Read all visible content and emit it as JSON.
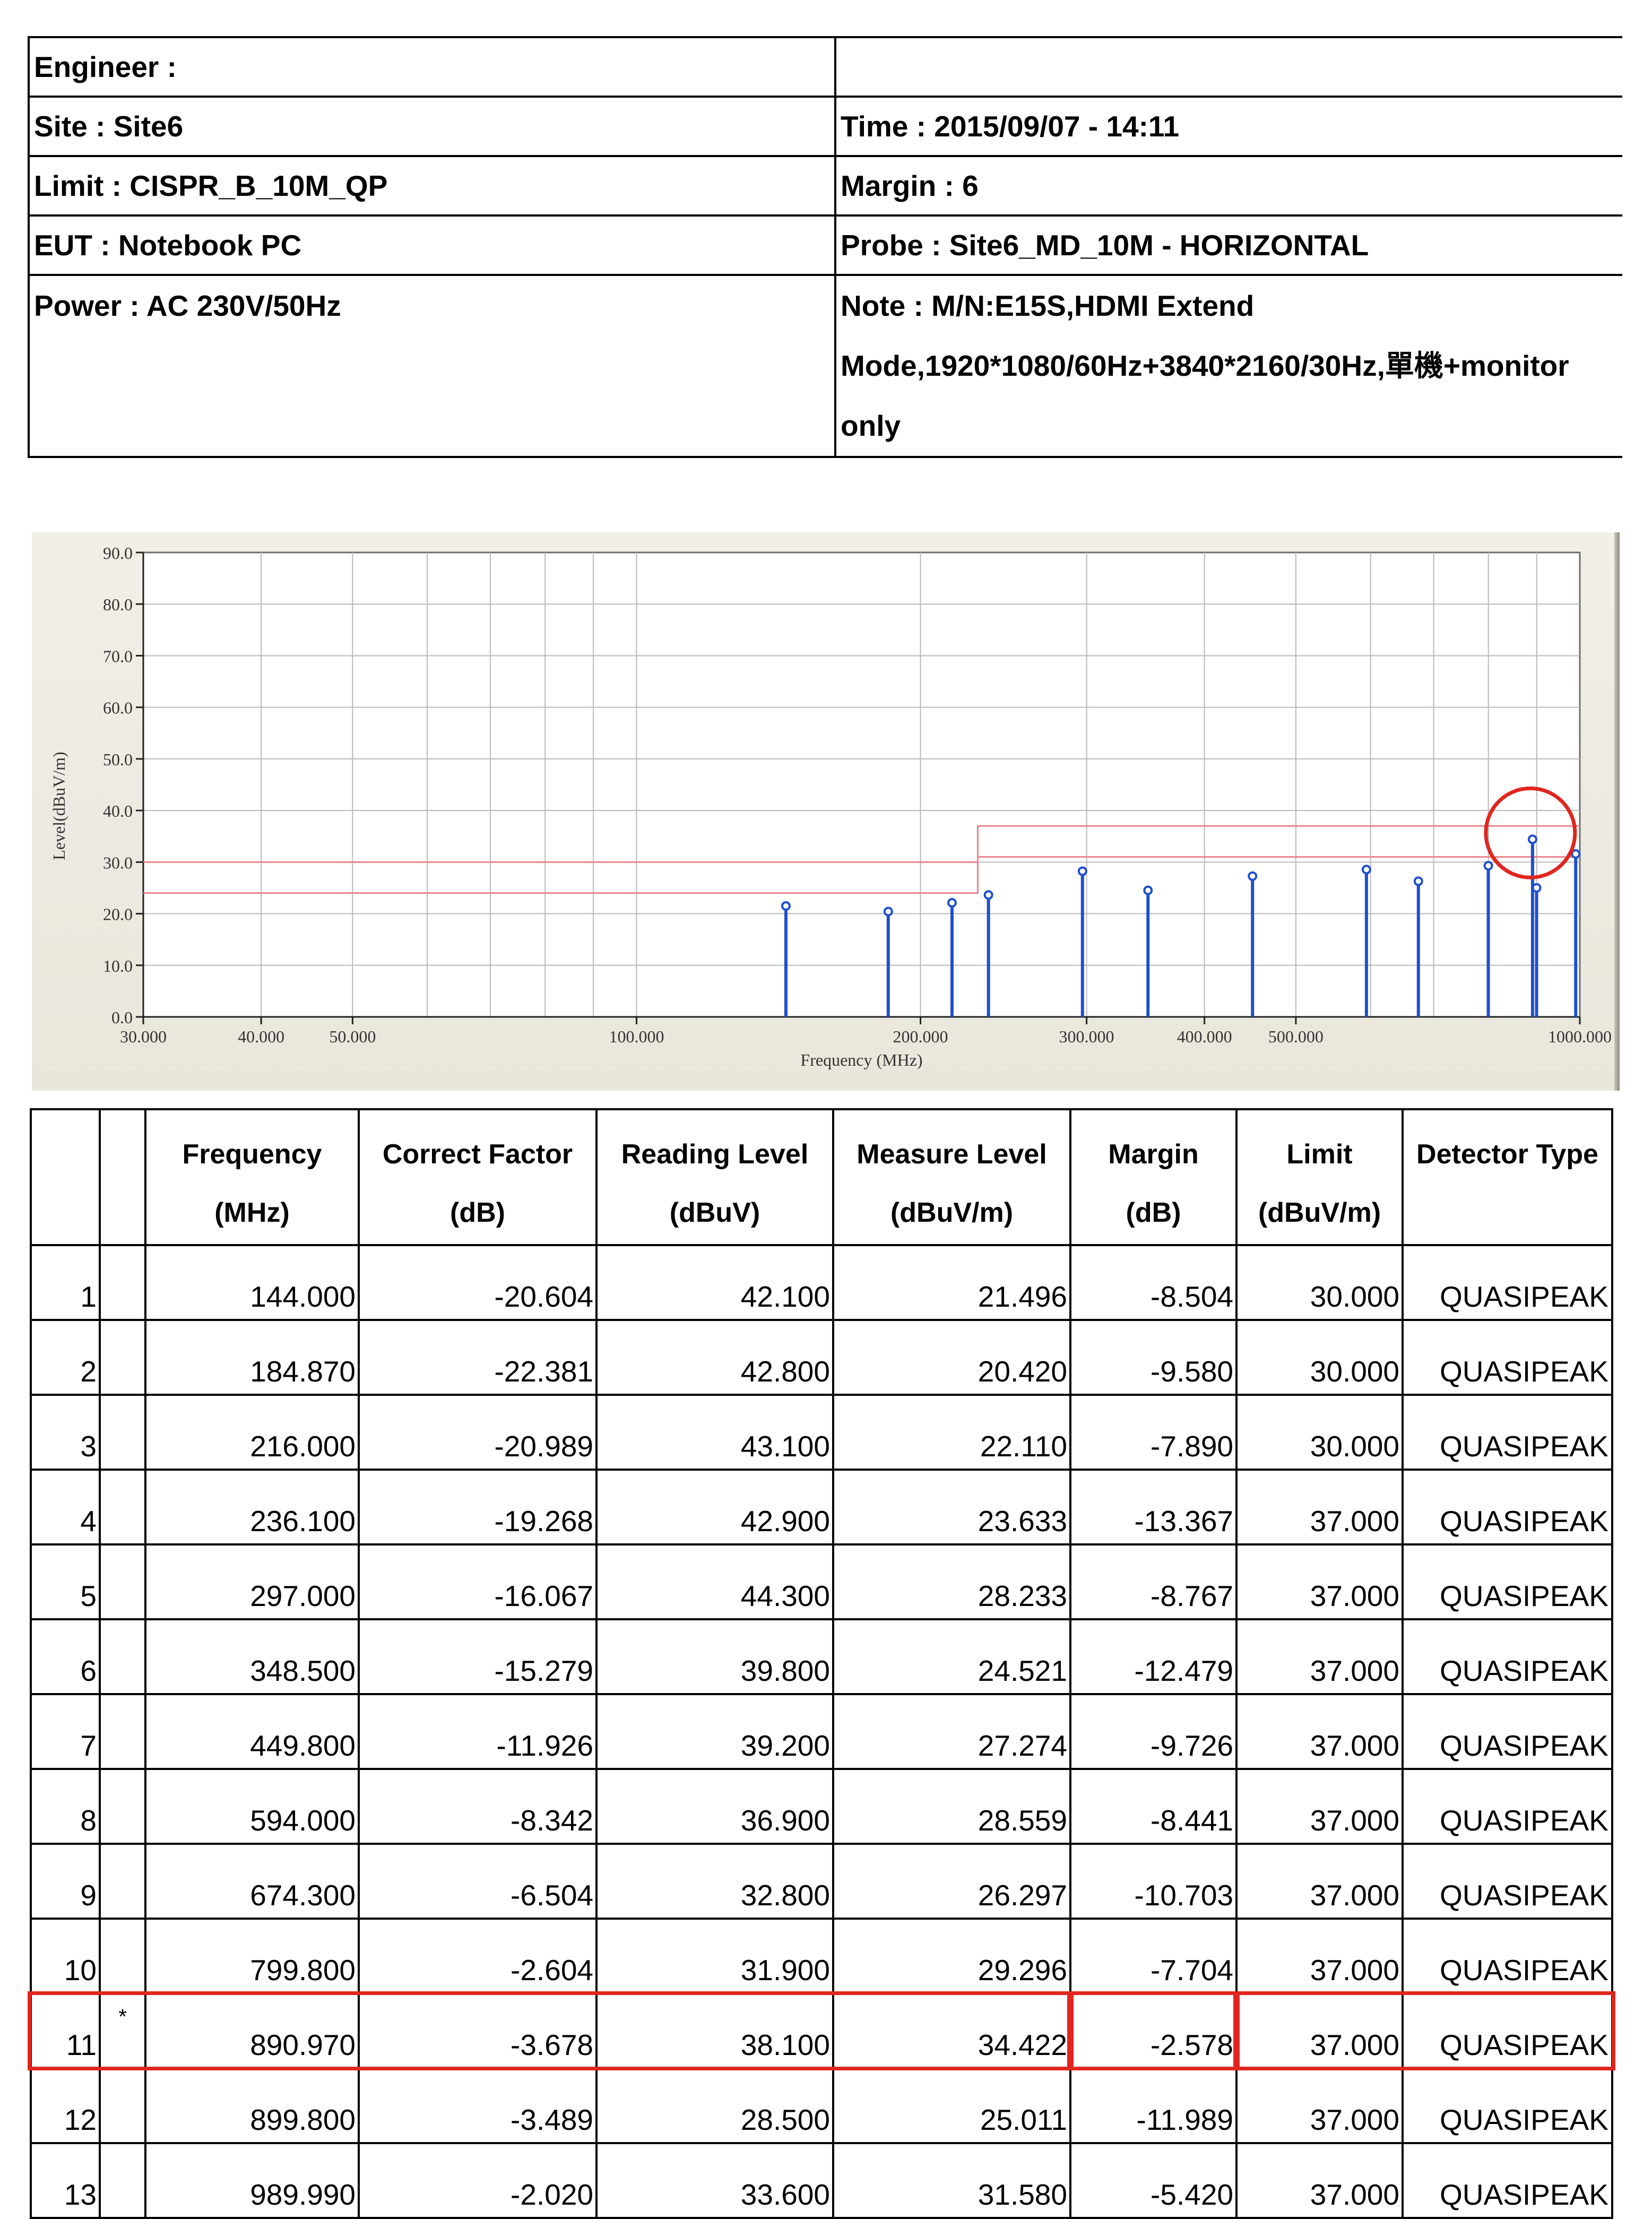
{
  "header": {
    "engineer": "Engineer :",
    "engineer_value": "",
    "site": "Site : Site6",
    "time": "Time : 2015/09/07 - 14:11",
    "limit": "Limit : CISPR_B_10M_QP",
    "margin": "Margin : 6",
    "eut": "EUT : Notebook PC",
    "probe": "Probe : Site6_MD_10M - HORIZONTAL",
    "power": "Power : AC 230V/50Hz",
    "note_line1": "Note : M/N:E15S,HDMI Extend",
    "note_line2": "Mode,1920*1080/60Hz+3840*2160/30Hz,單機+monitor",
    "note_line3": "only"
  },
  "chart_data": {
    "type": "scatter",
    "xlabel": "Frequency (MHz)",
    "ylabel": "Level(dBuV/m)",
    "x_scale": "log",
    "xlim": [
      30,
      1000
    ],
    "ylim": [
      0,
      90
    ],
    "x_ticks": [
      30,
      40,
      50,
      100,
      200,
      300,
      400,
      500,
      1000
    ],
    "x_tick_labels": [
      "30.000",
      "40.000",
      "50.000",
      "100.000",
      "200.000",
      "300.000",
      "400.000",
      "500.000",
      "1000.000"
    ],
    "y_ticks": [
      0,
      10,
      20,
      30,
      40,
      50,
      60,
      70,
      80,
      90
    ],
    "y_tick_labels": [
      "0.0",
      "10.0",
      "20.0",
      "30.0",
      "40.0",
      "50.0",
      "60.0",
      "70.0",
      "80.0",
      "90.0"
    ],
    "grid": true,
    "limit_lines": [
      {
        "x": [
          30,
          230,
          230,
          1000
        ],
        "y": [
          30,
          30,
          37,
          37
        ],
        "color": "#e8848a"
      },
      {
        "x": [
          30,
          230,
          230,
          1000
        ],
        "y": [
          24,
          24,
          31,
          31
        ],
        "color": "#e8848a"
      }
    ],
    "points": {
      "x": [
        144.0,
        184.87,
        216.0,
        236.1,
        297.0,
        348.5,
        449.8,
        594.0,
        674.3,
        799.8,
        890.97,
        899.8,
        989.99
      ],
      "y": [
        21.496,
        20.42,
        22.11,
        23.633,
        28.233,
        24.521,
        27.274,
        28.559,
        26.297,
        29.296,
        34.422,
        25.011,
        31.58
      ],
      "color": "#1e4fcf"
    },
    "highlight": {
      "x": 890.97,
      "y": 34.422,
      "color": "#e0261f"
    }
  },
  "table": {
    "headers": [
      {
        "l1": "",
        "l2": ""
      },
      {
        "l1": "",
        "l2": ""
      },
      {
        "l1": "Frequency",
        "l2": "(MHz)"
      },
      {
        "l1": "Correct Factor",
        "l2": "(dB)"
      },
      {
        "l1": "Reading Level",
        "l2": "(dBuV)"
      },
      {
        "l1": "Measure Level",
        "l2": "(dBuV/m)"
      },
      {
        "l1": "Margin",
        "l2": "(dB)"
      },
      {
        "l1": "Limit",
        "l2": "(dBuV/m)"
      },
      {
        "l1": "Detector Type",
        "l2": ""
      }
    ],
    "rows": [
      [
        "1",
        "",
        "144.000",
        "-20.604",
        "42.100",
        "21.496",
        "-8.504",
        "30.000",
        "QUASIPEAK"
      ],
      [
        "2",
        "",
        "184.870",
        "-22.381",
        "42.800",
        "20.420",
        "-9.580",
        "30.000",
        "QUASIPEAK"
      ],
      [
        "3",
        "",
        "216.000",
        "-20.989",
        "43.100",
        "22.110",
        "-7.890",
        "30.000",
        "QUASIPEAK"
      ],
      [
        "4",
        "",
        "236.100",
        "-19.268",
        "42.900",
        "23.633",
        "-13.367",
        "37.000",
        "QUASIPEAK"
      ],
      [
        "5",
        "",
        "297.000",
        "-16.067",
        "44.300",
        "28.233",
        "-8.767",
        "37.000",
        "QUASIPEAK"
      ],
      [
        "6",
        "",
        "348.500",
        "-15.279",
        "39.800",
        "24.521",
        "-12.479",
        "37.000",
        "QUASIPEAK"
      ],
      [
        "7",
        "",
        "449.800",
        "-11.926",
        "39.200",
        "27.274",
        "-9.726",
        "37.000",
        "QUASIPEAK"
      ],
      [
        "8",
        "",
        "594.000",
        "-8.342",
        "36.900",
        "28.559",
        "-8.441",
        "37.000",
        "QUASIPEAK"
      ],
      [
        "9",
        "",
        "674.300",
        "-6.504",
        "32.800",
        "26.297",
        "-10.703",
        "37.000",
        "QUASIPEAK"
      ],
      [
        "10",
        "",
        "799.800",
        "-2.604",
        "31.900",
        "29.296",
        "-7.704",
        "37.000",
        "QUASIPEAK"
      ],
      [
        "11",
        "*",
        "890.970",
        "-3.678",
        "38.100",
        "34.422",
        "-2.578",
        "37.000",
        "QUASIPEAK"
      ],
      [
        "12",
        "",
        "899.800",
        "-3.489",
        "28.500",
        "25.011",
        "-11.989",
        "37.000",
        "QUASIPEAK"
      ],
      [
        "13",
        "",
        "989.990",
        "-2.020",
        "33.600",
        "31.580",
        "-5.420",
        "37.000",
        "QUASIPEAK"
      ]
    ],
    "highlight_row": 10,
    "highlight_color": "#e0261f"
  }
}
